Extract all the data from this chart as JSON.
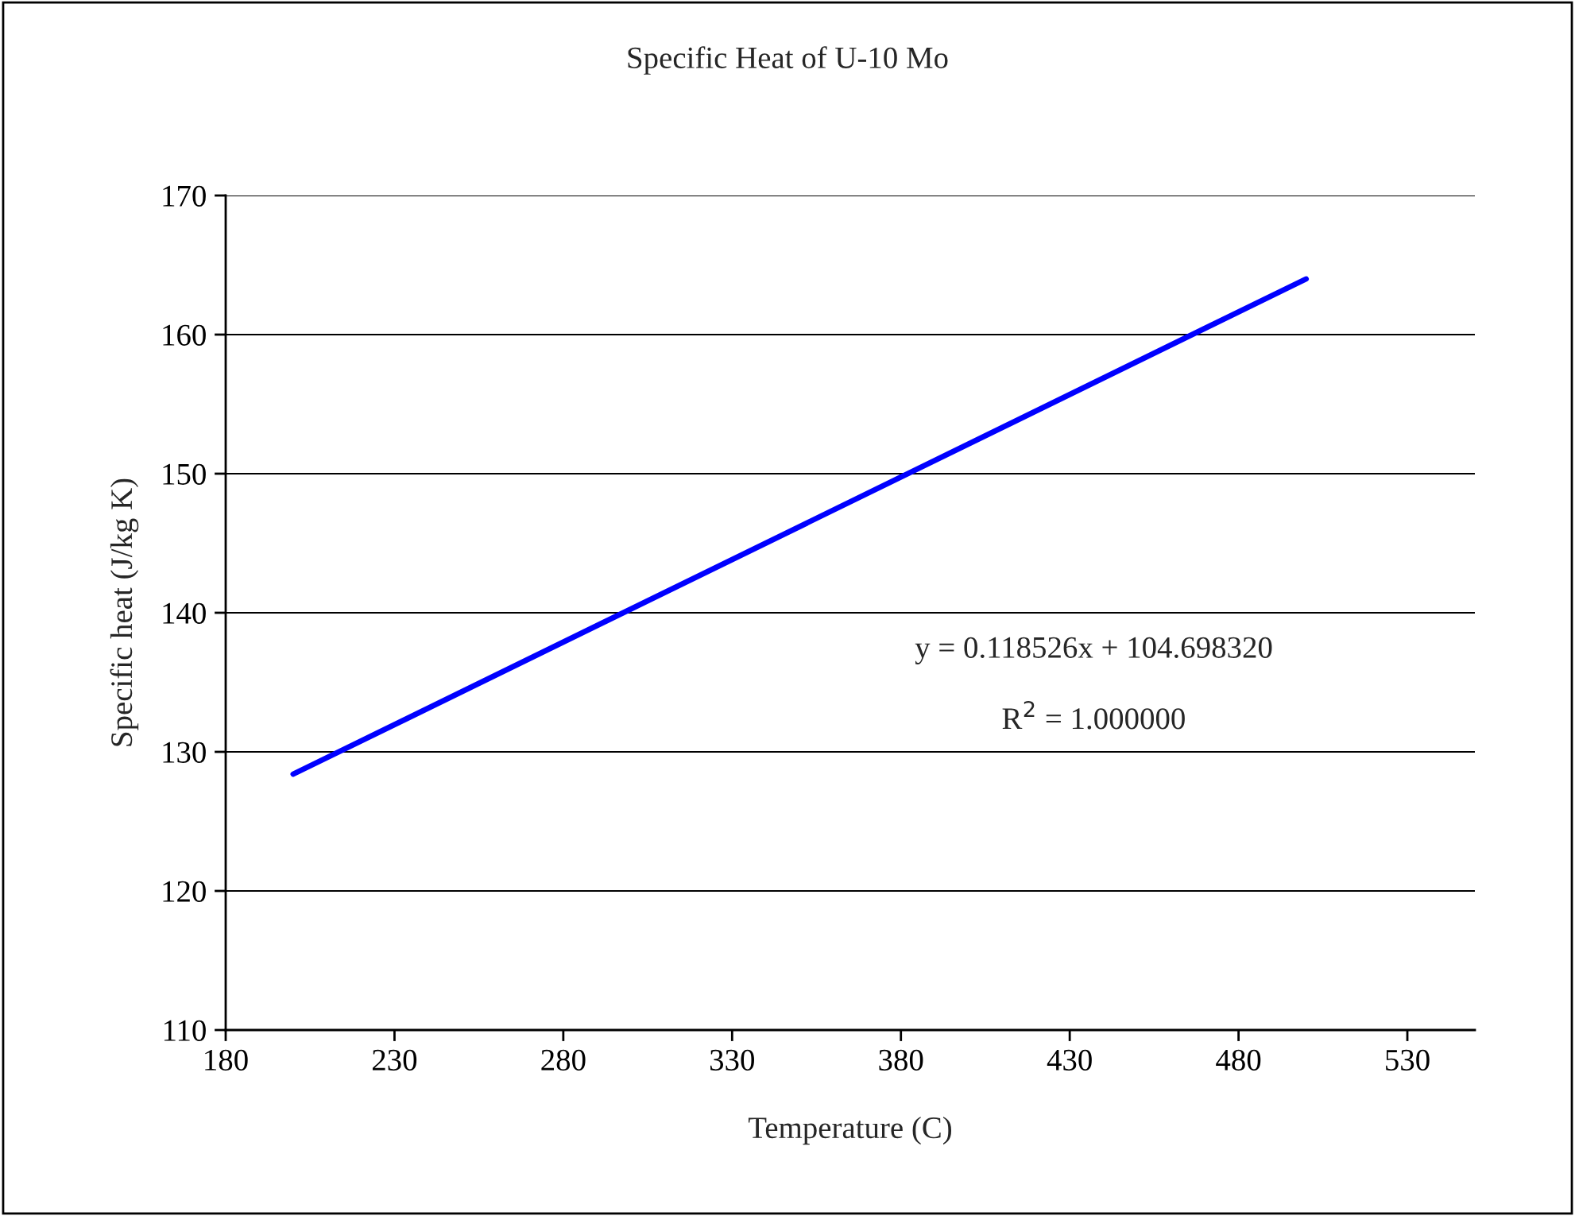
{
  "chart_data": {
    "type": "line",
    "title": "Specific Heat of U-10 Mo",
    "xlabel": "Temperature (C)",
    "ylabel": "Specific heat (J/kg K)",
    "series": [
      {
        "color": "#0000ff",
        "x": [
          200,
          500
        ],
        "values": [
          128.4,
          164.0
        ]
      }
    ],
    "xlim": [
      180,
      550
    ],
    "xticks": [
      180,
      230,
      280,
      330,
      380,
      430,
      480,
      530
    ],
    "ylim": [
      110,
      170
    ],
    "yticks": [
      110,
      120,
      130,
      140,
      150,
      160,
      170
    ],
    "grid": "y",
    "legend": false,
    "marker": "none",
    "line_style": "solid",
    "annotations": [
      "y = 0.118526x + 104.698320",
      "R$^{2}$ = 1.000000"
    ]
  }
}
